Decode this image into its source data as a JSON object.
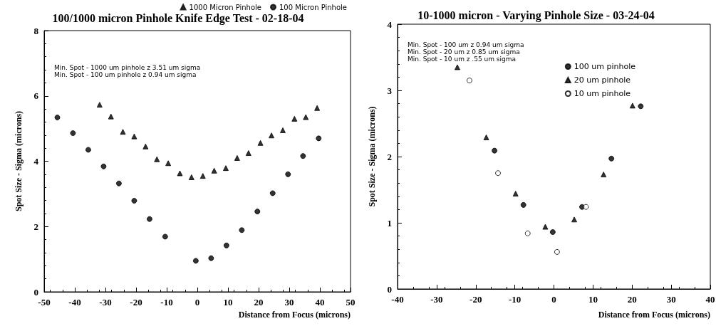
{
  "chart_data": [
    {
      "type": "scatter",
      "title": "100/1000 micron Pinhole Knife Edge Test - 02-18-04",
      "xlabel": "Distance from Focus (microns)",
      "ylabel": "Spot Size - Sigma (microns)",
      "xlim": [
        -50,
        50
      ],
      "xticks": [
        -50,
        -40,
        -30,
        -20,
        -10,
        0,
        10,
        20,
        30,
        40,
        50
      ],
      "ylim": [
        0,
        8
      ],
      "yticks": [
        0,
        2,
        4,
        6,
        8
      ],
      "grid": false,
      "legend": "top",
      "annotations": [
        "Min. Spot - 1000 um pinhole z 3.51 um sigma",
        "Min. Spot - 100 um pinhole z 0.94 um sigma"
      ],
      "series": [
        {
          "name": "1000 Micron Pinhole",
          "color": "#000000",
          "marker": "triangle",
          "x": [
            -31.9,
            -28.2,
            -24.3,
            -20.6,
            -16.9,
            -13.2,
            -9.5,
            -5.7,
            -1.9,
            1.8,
            5.5,
            9.3,
            13.0,
            16.7,
            20.6,
            24.2,
            27.9,
            31.7,
            35.4,
            39.1
          ],
          "values": [
            5.73,
            5.37,
            4.9,
            4.76,
            4.45,
            4.06,
            3.94,
            3.63,
            3.51,
            3.55,
            3.71,
            3.79,
            4.1,
            4.25,
            4.56,
            4.79,
            4.95,
            5.3,
            5.35,
            5.63
          ]
        },
        {
          "name": "100 Micron Pinhole",
          "color": "#000000",
          "marker": "circle",
          "x": [
            -45.7,
            -40.6,
            -35.6,
            -30.6,
            -25.6,
            -20.6,
            -15.6,
            -10.5,
            -0.5,
            4.5,
            9.5,
            14.5,
            19.6,
            24.6,
            29.6,
            34.5,
            39.6
          ],
          "values": [
            5.34,
            4.86,
            4.35,
            3.84,
            3.32,
            2.79,
            2.23,
            1.69,
            0.95,
            1.03,
            1.42,
            1.89,
            2.46,
            3.02,
            3.6,
            4.16,
            4.7
          ]
        }
      ]
    },
    {
      "type": "scatter",
      "title": "10-1000 micron - Varying Pinhole Size - 03-24-04",
      "xlabel": "Distance from Focus (microns)",
      "ylabel": "Spot Size - Sigma (microns)",
      "xlim": [
        -40,
        40
      ],
      "xticks": [
        -40,
        -30,
        -20,
        -10,
        0,
        10,
        20,
        30,
        40
      ],
      "ylim": [
        0,
        4
      ],
      "yticks": [
        0,
        1,
        2,
        3,
        4
      ],
      "grid": false,
      "legend": "top right",
      "annotations": [
        "Min. Spot - 100 um z 0.94 um sigma",
        "Min. Spot - 20 um z 0.85 um sigma",
        "Min. Spot - 10 um z .55 um sigma"
      ],
      "series": [
        {
          "name": "100 um pinhole",
          "color": "#000000",
          "marker": "circle",
          "x": [
            -15.2,
            -7.8,
            -0.3,
            7.2,
            14.7,
            22.2
          ],
          "values": [
            2.09,
            1.27,
            0.86,
            1.24,
            1.97,
            2.76
          ]
        },
        {
          "name": "20 um pinhole",
          "color": "#000000",
          "marker": "triangle",
          "x": [
            -24.7,
            -17.3,
            -9.8,
            -2.2,
            5.2,
            12.7,
            20.1
          ],
          "values": [
            3.35,
            2.29,
            1.44,
            0.94,
            1.05,
            1.73,
            2.77
          ]
        },
        {
          "name": "10 um pinhole",
          "color": "#ffffff",
          "marker": "circle",
          "x": [
            -21.6,
            -14.3,
            -6.7,
            0.8,
            8.2
          ],
          "values": [
            3.15,
            1.75,
            0.84,
            0.56,
            1.24
          ]
        }
      ]
    }
  ]
}
